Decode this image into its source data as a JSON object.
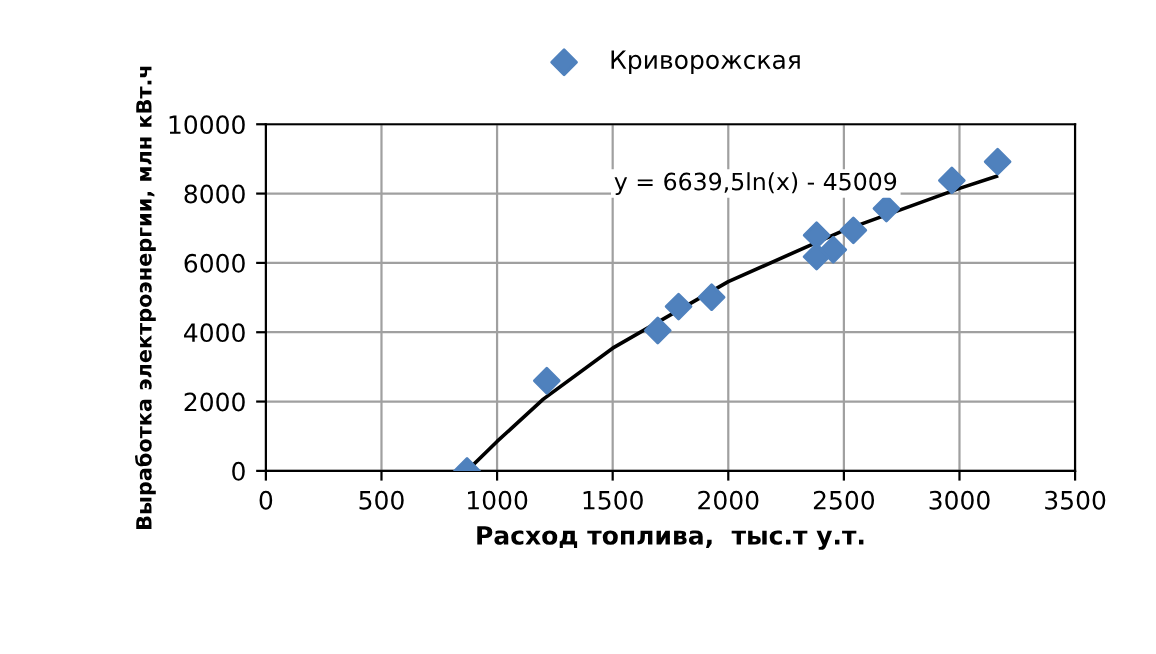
{
  "chart_data": {
    "type": "scatter",
    "xlabel": "Расход топлива,  тыс.т у.т.",
    "ylabel": "Выработка электроэнергии, млн кВт.ч",
    "x": [
      870,
      1215,
      1695,
      1785,
      1928,
      2382,
      2382,
      2454,
      2541,
      2684,
      2967,
      3165
    ],
    "series": [
      {
        "name": "Криворожская",
        "color": "#4f81bd",
        "marker": "diamond",
        "values": [
          0,
          2600,
          4050,
          4740,
          5010,
          6800,
          6180,
          6380,
          6940,
          7570,
          8380,
          8920
        ]
      },
      {
        "type": "line",
        "color": "#000000",
        "x": [
          870,
          1000,
          1200,
          1500,
          2000,
          2500,
          3000,
          3160
        ],
        "values": [
          0,
          850,
          2070,
          3540,
          5460,
          6940,
          8150,
          8500
        ]
      }
    ],
    "annotations": [
      "y = 6639,5ln(x) - 45009"
    ],
    "xlim": [
      0,
      3500
    ],
    "xticks": [
      0,
      500,
      1000,
      1500,
      2000,
      2500,
      3000,
      3500
    ],
    "ylim": [
      0,
      10000
    ],
    "yticks": [
      0,
      2000,
      4000,
      6000,
      8000,
      10000
    ],
    "grid": true,
    "legend": "top"
  }
}
